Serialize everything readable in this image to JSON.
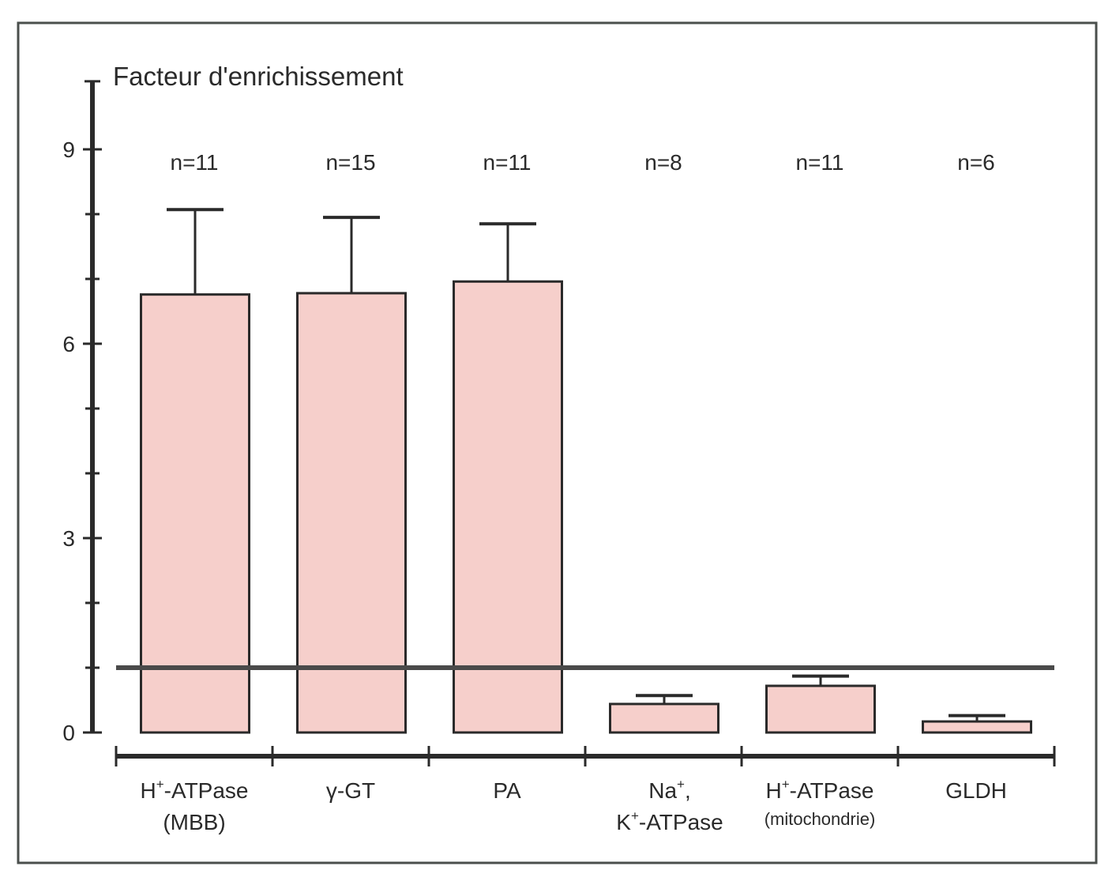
{
  "chart_data": {
    "type": "bar",
    "title": "",
    "ylabel": "Facteur d'enrichissement",
    "xlabel": "",
    "ylim": [
      0,
      10
    ],
    "y_ticks_major": [
      0,
      3,
      6,
      9
    ],
    "y_ticks_minor": [
      1,
      2,
      4,
      5,
      7,
      8
    ],
    "grid": false,
    "legend": "none",
    "reference_line": {
      "y": 1,
      "color": "#4a4a4a"
    },
    "bar_color": "#f6cfcb",
    "categories": [
      {
        "line1": "H",
        "sup1": "+",
        "rest1": "-ATPase",
        "line2": "(MBB)",
        "line2_small": false
      },
      {
        "line1": "γ-GT",
        "sup1": "",
        "rest1": "",
        "line2": "",
        "line2_small": false
      },
      {
        "line1": "PA",
        "sup1": "",
        "rest1": "",
        "line2": "",
        "line2_small": false
      },
      {
        "line1": "Na",
        "sup1": "+",
        "rest1": ",",
        "line2_pre": "K",
        "line2_sup": "+",
        "line2": "-ATPase",
        "line2_small": false
      },
      {
        "line1": "H",
        "sup1": "+",
        "rest1": "-ATPase",
        "line2": "(mitochondrie)",
        "line2_small": true
      },
      {
        "line1": "GLDH",
        "sup1": "",
        "rest1": "",
        "line2": "",
        "line2_small": false
      }
    ],
    "category_names": [
      "H+-ATPase (MBB)",
      "γ-GT",
      "PA",
      "Na+, K+-ATPase",
      "H+-ATPase (mitochondrie)",
      "GLDH"
    ],
    "values": [
      6.76,
      6.78,
      6.96,
      0.44,
      0.72,
      0.17
    ],
    "error_upper": [
      8.07,
      7.95,
      7.85,
      0.57,
      0.87,
      0.26
    ],
    "n_labels": [
      "n=11",
      "n=15",
      "n=11",
      "n=8",
      "n=11",
      "n=6"
    ]
  }
}
